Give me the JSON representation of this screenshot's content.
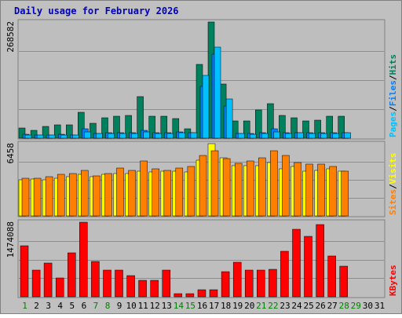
{
  "colors": {
    "frame_bg": "#C0C0C0",
    "plot_bg": "#BEBEBE",
    "title": "#0000C0",
    "hits": "#00805C",
    "files": "#0080FF",
    "pages": "#00C0FF",
    "visits": "#FFFF00",
    "sites": "#FF8000",
    "kbytes": "#FF0000",
    "weekday_label": "#008040",
    "weekend_label": "#008000"
  },
  "chart_data": {
    "type": "bar",
    "title": "Daily usage for February 2026",
    "days": [
      "1",
      "2",
      "3",
      "4",
      "5",
      "6",
      "7",
      "8",
      "9",
      "10",
      "11",
      "12",
      "13",
      "14",
      "15",
      "16",
      "17",
      "18",
      "19",
      "20",
      "21",
      "22",
      "23",
      "24",
      "25",
      "26",
      "27",
      "28",
      "29",
      "30",
      "31"
    ],
    "weekend_days": [
      "1",
      "7",
      "8",
      "14",
      "15",
      "21",
      "22",
      "28",
      "29"
    ],
    "panels": [
      {
        "id": "hits",
        "max_label": "268582",
        "ymax": 268582,
        "series": [
          {
            "name": "Hits",
            "color_key": "hits",
            "values": [
              23000,
              18000,
              28000,
              31000,
              30000,
              60000,
              35000,
              48000,
              50000,
              52000,
              96000,
              50000,
              50000,
              46000,
              22000,
              170000,
              268582,
              125000,
              40000,
              40000,
              66000,
              80000,
              52000,
              48000,
              40000,
              42000,
              50000,
              50000,
              null,
              null,
              null
            ]
          },
          {
            "name": "Files",
            "color_key": "files",
            "values": [
              9000,
              7000,
              8000,
              9000,
              8000,
              22000,
              11000,
              12000,
              12000,
              12000,
              18000,
              13000,
              12000,
              14000,
              13000,
              120000,
              195000,
              75000,
              11000,
              10000,
              12000,
              22000,
              12000,
              13000,
              12000,
              12000,
              12000,
              12000,
              null,
              null,
              null
            ]
          },
          {
            "name": "Pages",
            "color_key": "pages",
            "values": [
              8000,
              7000,
              7000,
              8000,
              7000,
              14000,
              10000,
              10000,
              11000,
              11000,
              14000,
              11000,
              11000,
              13000,
              12000,
              145000,
              210000,
              90000,
              10000,
              9000,
              11000,
              14000,
              11000,
              12000,
              11000,
              11000,
              11000,
              12000,
              null,
              null,
              null
            ]
          }
        ],
        "legend": [
          {
            "text": "Pages",
            "color_key": "pages"
          },
          {
            "text": "Files",
            "color_key": "files"
          },
          {
            "text": "Hits",
            "color_key": "hits"
          }
        ]
      },
      {
        "id": "visits",
        "max_label": "6458",
        "ymax": 6458,
        "series": [
          {
            "name": "Visits",
            "color_key": "visits",
            "values": [
              3200,
              3300,
              3200,
              3400,
              3500,
              3700,
              3500,
              3700,
              3800,
              3800,
              4000,
              3900,
              4000,
              4000,
              3900,
              5000,
              6458,
              5200,
              4500,
              4500,
              4500,
              4800,
              4200,
              4400,
              4000,
              4100,
              4200,
              4000,
              null,
              null,
              null
            ]
          },
          {
            "name": "Sites",
            "color_key": "sites",
            "values": [
              3400,
              3400,
              3500,
              3700,
              3800,
              4100,
              3600,
              3800,
              4300,
              4100,
              4900,
              4200,
              4100,
              4300,
              4400,
              5400,
              5800,
              5100,
              4700,
              4900,
              5200,
              5800,
              5400,
              4800,
              4600,
              4600,
              4400,
              4000,
              null,
              null,
              null
            ]
          }
        ],
        "legend": [
          {
            "text": "Sites",
            "color_key": "sites"
          },
          {
            "text": "Visits",
            "color_key": "visits"
          }
        ]
      },
      {
        "id": "kbytes",
        "max_label": "1474088",
        "ymax": 1474088,
        "series": [
          {
            "name": "KBytes",
            "color_key": "kbytes",
            "values": [
              1010000,
              530000,
              670000,
              370000,
              870000,
              1474088,
              700000,
              530000,
              530000,
              420000,
              320000,
              320000,
              530000,
              60000,
              60000,
              140000,
              140000,
              500000,
              680000,
              530000,
              530000,
              540000,
              900000,
              1340000,
              1200000,
              1420000,
              800000,
              600000,
              null,
              null,
              null
            ]
          }
        ],
        "legend": [
          {
            "text": "KBytes",
            "color_key": "kbytes"
          }
        ]
      }
    ]
  }
}
